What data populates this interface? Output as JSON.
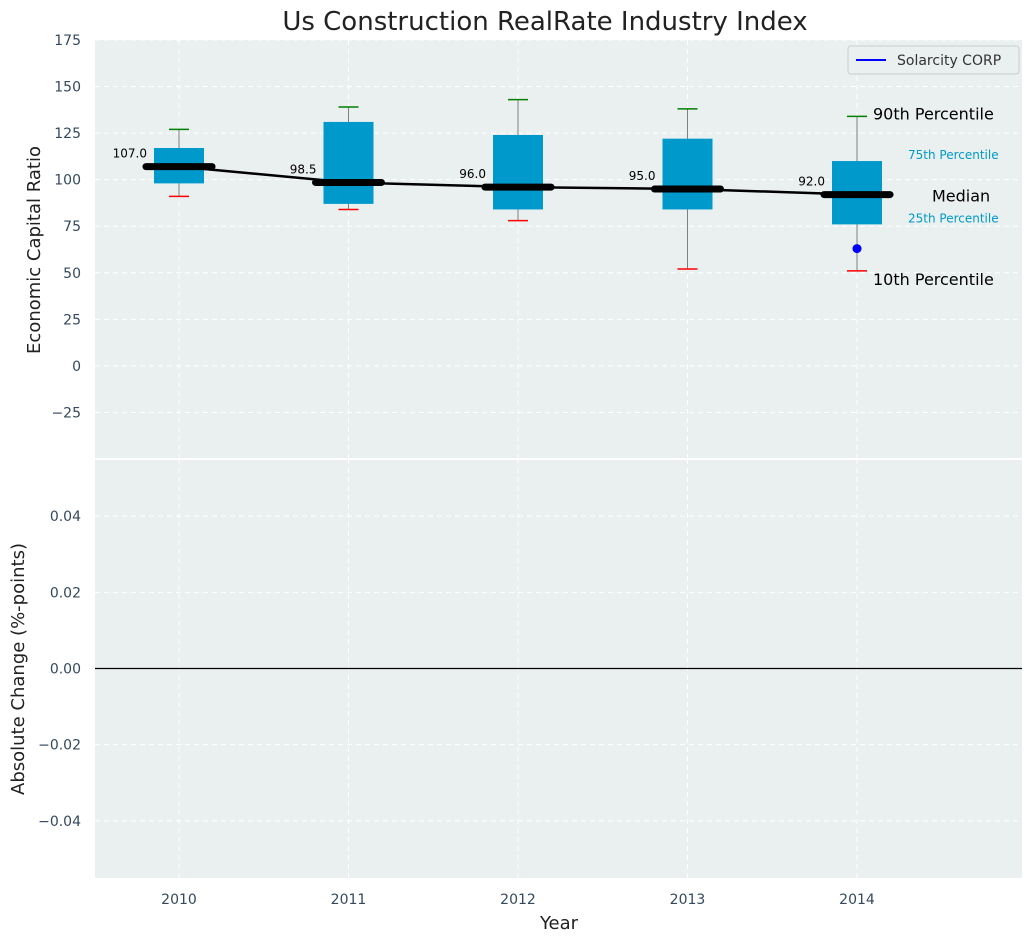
{
  "chart_data": {
    "type": "box",
    "title": "Us Construction RealRate Industry Index",
    "xlabel": "Year",
    "categories": [
      "2010",
      "2011",
      "2012",
      "2013",
      "2014"
    ],
    "top_panel": {
      "ylabel": "Economic Capital Ratio",
      "ylim": [
        -50,
        175
      ],
      "yticks": [
        -25,
        0,
        25,
        50,
        75,
        100,
        125,
        150,
        175
      ],
      "ytick_labels": [
        "−25",
        "0",
        "25",
        "50",
        "75",
        "100",
        "125",
        "150",
        "175"
      ],
      "series": [
        {
          "category": "2010",
          "p10": 91,
          "p25": 98,
          "median": 107.0,
          "p75": 117,
          "p90": 127,
          "median_label": "107.0"
        },
        {
          "category": "2011",
          "p10": 84,
          "p25": 87,
          "median": 98.5,
          "p75": 131,
          "p90": 139,
          "median_label": "98.5"
        },
        {
          "category": "2012",
          "p10": 78,
          "p25": 84,
          "median": 96.0,
          "p75": 124,
          "p90": 143,
          "median_label": "96.0"
        },
        {
          "category": "2013",
          "p10": 52,
          "p25": 84,
          "median": 95.0,
          "p75": 122,
          "p90": 138,
          "median_label": "95.0"
        },
        {
          "category": "2014",
          "p10": 51,
          "p25": 76,
          "median": 92.0,
          "p75": 110,
          "p90": 134,
          "median_label": "92.0"
        }
      ],
      "company_points": [
        {
          "category": "2014",
          "value": 63
        }
      ],
      "legend": {
        "label": "Solarcity CORP",
        "position": "top-right",
        "color": "#0000ff"
      },
      "annotations": {
        "p90": "90th Percentile",
        "p75": "75th Percentile",
        "median": "Median",
        "p25": "25th Percentile",
        "p10": "10th Percentile"
      }
    },
    "bottom_panel": {
      "ylabel": "Absolute Change (%-points)",
      "ylim": [
        -0.055,
        0.055
      ],
      "yticks": [
        -0.04,
        -0.02,
        0.0,
        0.02,
        0.04
      ],
      "ytick_labels": [
        "−0.04",
        "−0.02",
        "0.00",
        "0.02",
        "0.04"
      ],
      "zero_line": true
    },
    "grid": true,
    "colors": {
      "box": "#0099cc",
      "median_line": "#000000",
      "p90_cap": "#008000",
      "p10_cap": "#ff0000",
      "company_point": "#0000ff",
      "axes_bg": "#eaeff0",
      "percentile_text": "#0099cc"
    }
  }
}
